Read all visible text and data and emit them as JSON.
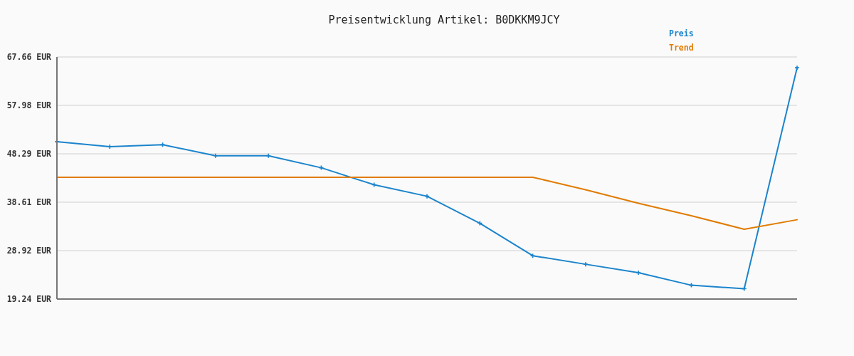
{
  "chart_data": {
    "type": "line",
    "title": "Preisentwicklung Artikel: B0DKKM9JCY",
    "categories": [
      null,
      null,
      null,
      null,
      null,
      null,
      null,
      null,
      null,
      null,
      null,
      null,
      null,
      null,
      null
    ],
    "series": [
      {
        "name": "Preis",
        "color": "#1b84cc",
        "marker": "cross",
        "values": [
          50.7,
          49.7,
          50.1,
          47.9,
          47.9,
          45.5,
          42.1,
          39.8,
          34.4,
          27.9,
          26.2,
          24.5,
          22.0,
          21.3,
          65.5
        ]
      },
      {
        "name": "Trend",
        "color": "#e07b00",
        "values": [
          43.6,
          43.6,
          43.6,
          43.6,
          43.6,
          43.6,
          43.6,
          43.6,
          43.6,
          43.6,
          41.1,
          38.4,
          35.9,
          33.2,
          35.1
        ]
      }
    ],
    "ylim": [
      19.24,
      67.66
    ],
    "yticks": [
      {
        "value": 19.24,
        "label": "19.24 EUR"
      },
      {
        "value": 28.92,
        "label": "28.92 EUR"
      },
      {
        "value": 38.61,
        "label": "38.61 EUR"
      },
      {
        "value": 48.29,
        "label": "48.29 EUR"
      },
      {
        "value": 57.98,
        "label": "57.98 EUR"
      },
      {
        "value": 67.66,
        "label": "67.66 EUR"
      }
    ],
    "grid": "y",
    "legend": "top right",
    "tick_labels": "y"
  }
}
